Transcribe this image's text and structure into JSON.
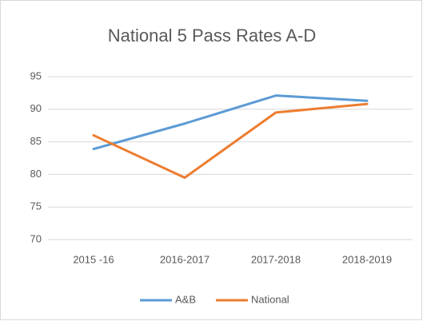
{
  "chart_data": {
    "type": "line",
    "title": "National 5 Pass Rates A-D",
    "categories": [
      "2015 -16",
      "2016-2017",
      "2017-2018",
      "2018-2019"
    ],
    "series": [
      {
        "name": "A&B",
        "color": "#5b9bd5",
        "values": [
          83.9,
          87.8,
          92.1,
          91.3
        ]
      },
      {
        "name": "National",
        "color": "#ed7d31",
        "values": [
          86,
          79.5,
          89.5,
          90.8
        ]
      }
    ],
    "ylim": [
      70,
      95
    ],
    "yticks": [
      70,
      75,
      80,
      85,
      90,
      95
    ],
    "grid": true,
    "legend": "bottom"
  }
}
